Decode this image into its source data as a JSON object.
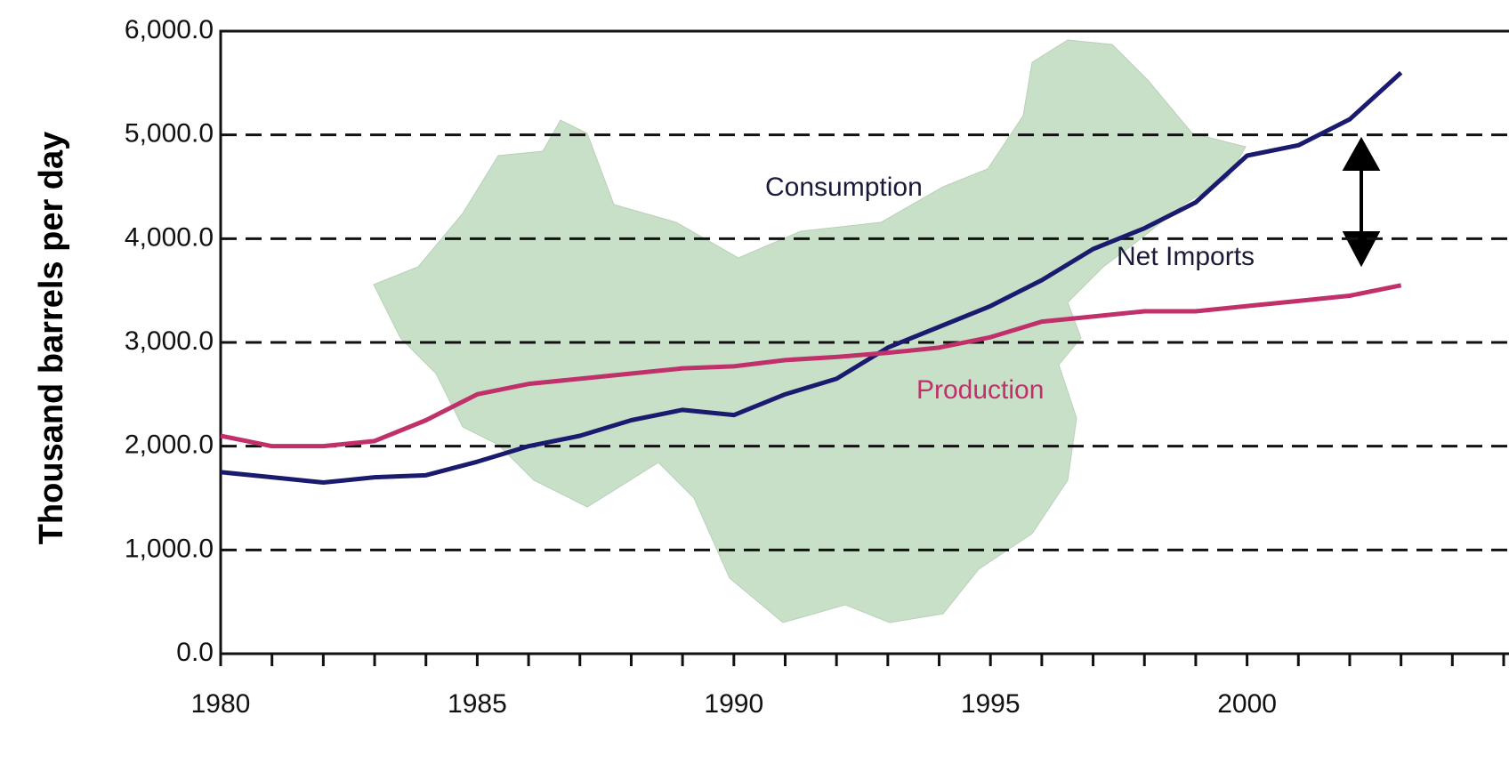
{
  "chart_data": {
    "type": "line",
    "y_label": "Thousand barrels per day",
    "x": [
      1980,
      1981,
      1982,
      1983,
      1984,
      1985,
      1986,
      1987,
      1988,
      1989,
      1990,
      1991,
      1992,
      1993,
      1994,
      1995,
      1996,
      1997,
      1998,
      1999,
      2000,
      2001,
      2002,
      2003
    ],
    "series": [
      {
        "name": "Consumption",
        "color": "#1a1a6e",
        "values": [
          1750,
          1700,
          1650,
          1700,
          1720,
          1850,
          2000,
          2100,
          2250,
          2350,
          2300,
          2500,
          2650,
          2950,
          3150,
          3350,
          3600,
          3900,
          4100,
          4350,
          4800,
          4900,
          5150,
          5600
        ]
      },
      {
        "name": "Production",
        "color": "#c0306a",
        "values": [
          2100,
          2000,
          2000,
          2050,
          2250,
          2500,
          2600,
          2650,
          2700,
          2750,
          2770,
          2830,
          2860,
          2900,
          2950,
          3050,
          3200,
          3250,
          3300,
          3300,
          3350,
          3400,
          3450,
          3550
        ]
      }
    ],
    "annotations": [
      "Net Imports"
    ],
    "xlim": [
      1980,
      2005
    ],
    "xticks": [
      1980,
      1985,
      1990,
      1995,
      2000
    ],
    "xminor_ticks": [
      1980,
      1981,
      1982,
      1983,
      1984,
      1985,
      1986,
      1987,
      1988,
      1989,
      1990,
      1991,
      1992,
      1993,
      1994,
      1995,
      1996,
      1997,
      1998,
      1999,
      2000,
      2001,
      2002,
      2003,
      2004,
      2005
    ],
    "ylim": [
      0,
      6000
    ],
    "yticks": [
      {
        "value": 0,
        "label": "0.0"
      },
      {
        "value": 1000,
        "label": "1,000.0"
      },
      {
        "value": 2000,
        "label": "2,000.0"
      },
      {
        "value": 3000,
        "label": "3,000.0"
      },
      {
        "value": 4000,
        "label": "4,000.0"
      },
      {
        "value": 5000,
        "label": "5,000.0"
      },
      {
        "value": 6000,
        "label": "6,000.0"
      }
    ],
    "grid": true
  }
}
